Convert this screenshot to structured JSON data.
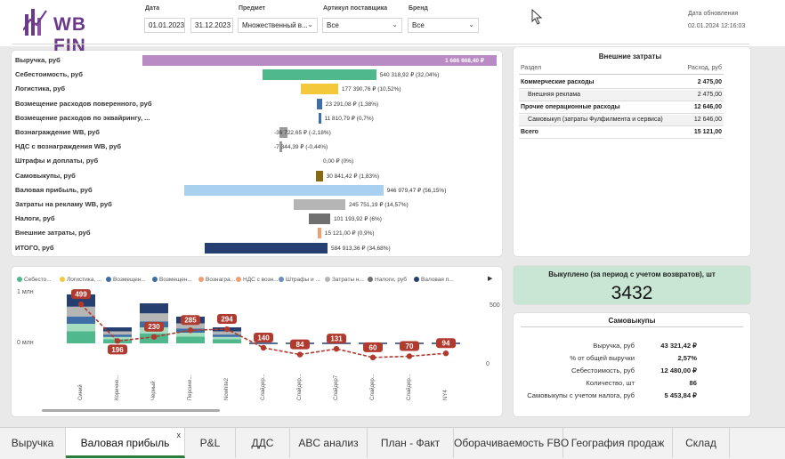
{
  "header": {
    "logo_text": "WB FIN",
    "filters": [
      {
        "label": "Дата",
        "value": "01.01.2023"
      },
      {
        "label": "",
        "value": "31.12.2023"
      },
      {
        "label": "Предмет",
        "value": "Множественный в..."
      },
      {
        "label": "Артикул поставщика",
        "value": "Все"
      },
      {
        "label": "Бренд",
        "value": "Все"
      }
    ],
    "update_label": "Дата обновления",
    "update_value": "02.01.2024 12:16:03"
  },
  "waterfall": {
    "rows": [
      {
        "label": "Выручка, руб",
        "value": "1 686 868,40 ₽",
        "color": "#b98bc4",
        "amount": 1686868.4
      },
      {
        "label": "Себестоимость, руб",
        "value": "540 318,92 ₽ (32,04%)",
        "color": "#4fb88c",
        "amount": 540318.92
      },
      {
        "label": "Логистика, руб",
        "value": "177 390,76 ₽ (10,52%)",
        "color": "#f3c93b",
        "amount": 177390.76
      },
      {
        "label": "Возмещение расходов поверенного, руб",
        "value": "23 291,08 ₽ (1,38%)",
        "color": "#3d6ea5",
        "amount": 23291.08
      },
      {
        "label": "Возмещение расходов по эквайрингу, ...",
        "value": "11 810,79 ₽ (0,7%)",
        "color": "#3d6ea5",
        "amount": 11810.79
      },
      {
        "label": "Вознаграждение WB, руб",
        "value": "-36 722,65 ₽ (-2,18%)",
        "color": "#9a9a9a",
        "amount": -36722.65
      },
      {
        "label": "НДС с вознаграждения WB, руб",
        "value": "-7 344,39 ₽ (-0,44%)",
        "color": "#9a9a9a",
        "amount": -7344.39
      },
      {
        "label": "Штрафы и доплаты, руб",
        "value": "0,00 ₽ (0%)",
        "color": "#9a9a9a",
        "amount": 0
      },
      {
        "label": "Самовыкупы, руб",
        "value": "30 841,42 ₽ (1,83%)",
        "color": "#8a6a10",
        "amount": 30841.42
      },
      {
        "label": "Валовая прибыль, руб",
        "value": "946 979,47 ₽ (56,15%)",
        "color": "#a8d1f0",
        "amount": 946979.47
      },
      {
        "label": "Затраты на рекламу WB, руб",
        "value": "245 751,19 ₽ (14,57%)",
        "color": "#b5b5b5",
        "amount": 245751.19
      },
      {
        "label": "Налоги, руб",
        "value": "101 193,92 ₽ (6%)",
        "color": "#707070",
        "amount": 101193.92
      },
      {
        "label": "Внешние затраты, руб",
        "value": "15 121,00 ₽ (0,9%)",
        "color": "#f0a070",
        "amount": 15121.0
      },
      {
        "label": "ИТОГО, руб",
        "value": "584 913,36 ₽ (34,68%)",
        "color": "#243f70",
        "amount": 584913.36
      }
    ]
  },
  "external": {
    "title": "Внешние затраты",
    "col1": "Раздел",
    "col2": "Расход, руб",
    "rows": [
      {
        "label": "Коммерческие расходы",
        "value": "2 475,00",
        "bold": true
      },
      {
        "label": "Внешняя реклама",
        "value": "2 475,00",
        "bold": false
      },
      {
        "label": "Прочие операционные расходы",
        "value": "12 646,00",
        "bold": true
      },
      {
        "label": "Самовыкуп (затраты Фулфилмента и сервиса)",
        "value": "12 646,00",
        "bold": false
      },
      {
        "label": "Всего",
        "value": "15 121,00",
        "bold": true
      }
    ]
  },
  "kpi": {
    "title": "Выкуплено (за период с учетом возвратов), шт",
    "value": "3432",
    "bg": "#c8e6d3"
  },
  "selfbuy": {
    "title": "Самовыкупы",
    "rows": [
      {
        "label": "Выручка, руб",
        "value": "43 321,42 ₽"
      },
      {
        "label": "% от общей выручки",
        "value": "2,57%"
      },
      {
        "label": "Себестоимость, руб",
        "value": "12 480,00 ₽"
      },
      {
        "label": "Количество, шт",
        "value": "86"
      },
      {
        "label": "Самовыкупы с учетом налога, руб",
        "value": "5 453,84 ₽"
      }
    ]
  },
  "chart_data": {
    "type": "bar",
    "legend": [
      {
        "name": "Себесто...",
        "color": "#4fb88c"
      },
      {
        "name": "Логистика, ...",
        "color": "#f3c93b"
      },
      {
        "name": "Возмещен...",
        "color": "#3d6ea5"
      },
      {
        "name": "Возмещен...",
        "color": "#3d6ea5"
      },
      {
        "name": "Вознагра...",
        "color": "#f0a070"
      },
      {
        "name": "НДС с возн...",
        "color": "#f0a070"
      },
      {
        "name": "Штрафы и ...",
        "color": "#6c8ebf"
      },
      {
        "name": "Затраты н...",
        "color": "#b5b5b5"
      },
      {
        "name": "Налоги, руб",
        "color": "#707070"
      },
      {
        "name": "Валовая п...",
        "color": "#243f70"
      }
    ],
    "categories": [
      "Синий",
      "Коричне...",
      "Черный",
      "Персике...",
      "Nowhite2",
      "Слайдер...",
      "Слайдер...",
      "Слайдер7",
      "Слайдер...",
      "Слайдер...",
      "NY4"
    ],
    "bar_totals_mln": [
      0.55,
      0.18,
      0.45,
      0.3,
      0.18,
      0.0,
      0.0,
      0.0,
      0.0,
      0.0,
      0.0
    ],
    "line_label": "Выкуплено, шт",
    "line_values": [
      499,
      196,
      230,
      285,
      294,
      140,
      84,
      131,
      60,
      70,
      94
    ],
    "y_left_ticks": [
      "1 млн",
      "0 млн"
    ],
    "y_right_ticks": [
      "500",
      "0"
    ]
  },
  "tabs": {
    "items": [
      "Выручка",
      "Валовая прибыль",
      "P&L",
      "ДДС",
      "ABC анализ",
      "План - Факт",
      "Оборачиваемость FBO",
      "География продаж",
      "Склад"
    ],
    "close": "x"
  }
}
